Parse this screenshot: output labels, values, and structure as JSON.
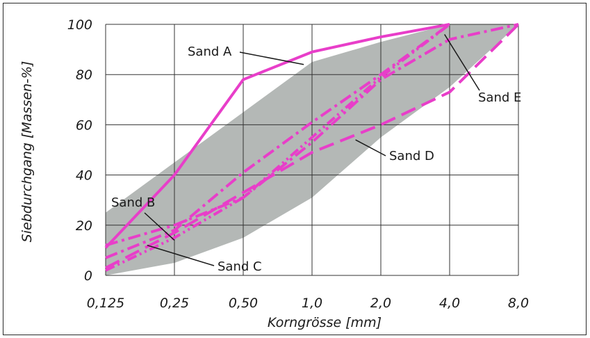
{
  "chart_data": {
    "type": "line",
    "xlabel": "Korngrösse [mm]",
    "ylabel": "Siebdurchgang [Massen-%]",
    "x_scale": "log2",
    "categories": [
      "0,125",
      "0,25",
      "0,50",
      "1,0",
      "2,0",
      "4,0",
      "8,0"
    ],
    "x": [
      0.125,
      0.25,
      0.5,
      1.0,
      2.0,
      4.0,
      8.0
    ],
    "y_ticks": [
      "0",
      "20",
      "40",
      "60",
      "80",
      "100"
    ],
    "ylim": [
      0,
      100
    ],
    "grid": true,
    "band": {
      "upper": [
        [
          0.125,
          25
        ],
        [
          0.25,
          45
        ],
        [
          0.5,
          65
        ],
        [
          1.0,
          85
        ],
        [
          2.0,
          93
        ],
        [
          4.0,
          100
        ],
        [
          8.0,
          100
        ]
      ],
      "lower": [
        [
          0.125,
          0
        ],
        [
          0.25,
          5
        ],
        [
          0.5,
          15
        ],
        [
          1.0,
          31
        ],
        [
          2.0,
          55
        ],
        [
          4.0,
          75
        ],
        [
          8.0,
          100
        ]
      ],
      "color": "#b4b8b6"
    },
    "series": [
      {
        "name": "Sand A",
        "style": "solid",
        "color": "#e83ec9",
        "points": [
          [
            0.125,
            11
          ],
          [
            0.25,
            40
          ],
          [
            0.5,
            78
          ],
          [
            1.0,
            89
          ],
          [
            2.0,
            95
          ],
          [
            4.0,
            100
          ]
        ]
      },
      {
        "name": "Sand B",
        "style": "dashdot",
        "color": "#e83ec9",
        "points": [
          [
            0.125,
            7
          ],
          [
            0.25,
            18
          ],
          [
            0.5,
            41
          ],
          [
            1.0,
            61
          ],
          [
            2.0,
            80
          ],
          [
            4.0,
            100
          ]
        ]
      },
      {
        "name": "Sand C",
        "style": "dashdotdot",
        "color": "#e83ec9",
        "points": [
          [
            0.125,
            2
          ],
          [
            0.25,
            15
          ],
          [
            0.5,
            31
          ],
          [
            1.0,
            55
          ],
          [
            2.0,
            79
          ],
          [
            4.0,
            100
          ]
        ]
      },
      {
        "name": "Sand D",
        "style": "dashed",
        "color": "#e83ec9",
        "points": [
          [
            0.125,
            3
          ],
          [
            0.25,
            17
          ],
          [
            0.5,
            33
          ],
          [
            1.0,
            49
          ],
          [
            2.0,
            60
          ],
          [
            4.0,
            73
          ],
          [
            8.0,
            100
          ]
        ]
      },
      {
        "name": "Sand E",
        "style": "dashdot",
        "color": "#e83ec9",
        "points": [
          [
            0.125,
            12
          ],
          [
            0.25,
            20
          ],
          [
            0.5,
            31
          ],
          [
            1.0,
            53
          ],
          [
            2.0,
            78
          ],
          [
            4.0,
            94
          ],
          [
            8.0,
            100
          ]
        ]
      }
    ],
    "annotations": [
      {
        "text": "Sand A",
        "target": [
          0.92,
          84
        ]
      },
      {
        "text": "Sand B",
        "target": [
          0.25,
          14
        ]
      },
      {
        "text": "Sand C",
        "target": [
          0.19,
          12
        ]
      },
      {
        "text": "Sand D",
        "target": [
          1.55,
          54
        ]
      },
      {
        "text": "Sand E",
        "target": [
          3.8,
          96
        ]
      }
    ]
  }
}
